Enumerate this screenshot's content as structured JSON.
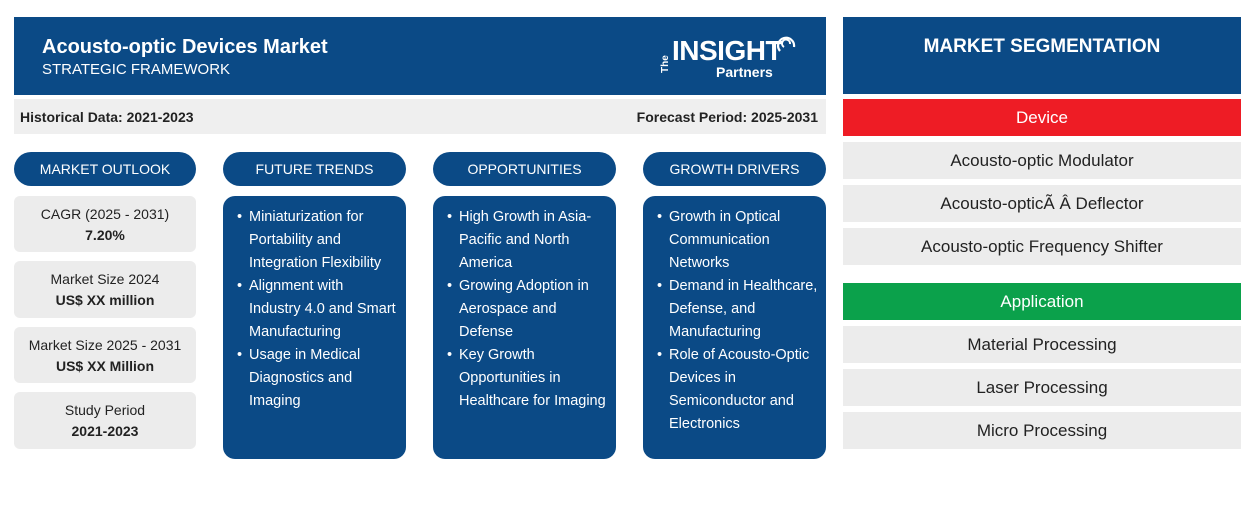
{
  "header": {
    "title": "Acousto-optic Devices Market",
    "subtitle": "STRATEGIC FRAMEWORK",
    "logo": {
      "the": "The",
      "insight": "INSIGHT",
      "partners": "Partners"
    }
  },
  "periods": {
    "historical": "Historical Data: 2021-2023",
    "forecast": "Forecast Period: 2025-2031"
  },
  "columns": {
    "outlook": "MARKET OUTLOOK",
    "trends": "FUTURE TRENDS",
    "opportunities": "OPPORTUNITIES",
    "drivers": "GROWTH DRIVERS"
  },
  "outlook": [
    {
      "label": "CAGR (2025 - 2031)",
      "value": "7.20%"
    },
    {
      "label": "Market Size 2024",
      "value": "US$ XX million"
    },
    {
      "label": "Market Size 2025 - 2031",
      "value": "US$ XX Million"
    },
    {
      "label": "Study Period",
      "value": "2021-2023"
    }
  ],
  "trends": [
    "Miniaturization for Portability and Integration Flexibility",
    "Alignment with Industry 4.0 and Smart Manufacturing",
    "Usage in Medical Diagnostics and Imaging"
  ],
  "opportunities": [
    "High Growth in Asia-Pacific and North America",
    "Growing Adoption in Aerospace and Defense",
    "Key Growth Opportunities in Healthcare for Imaging"
  ],
  "drivers": [
    "Growth in Optical Communication Networks",
    "Demand in Healthcare, Defense, and Manufacturing",
    "Role of Acousto-Optic Devices in Semiconductor and Electronics"
  ],
  "segmentation": {
    "title": "MARKET SEGMENTATION",
    "device": {
      "label": "Device",
      "color": "#ee1c25",
      "items": [
        "Acousto-optic Modulator",
        "Acousto-opticÃ Â  Deflector",
        "Acousto-optic Frequency Shifter"
      ]
    },
    "application": {
      "label": "Application",
      "color": "#0ba14b",
      "items": [
        "Material Processing",
        "Laser Processing",
        "Micro Processing"
      ]
    }
  }
}
